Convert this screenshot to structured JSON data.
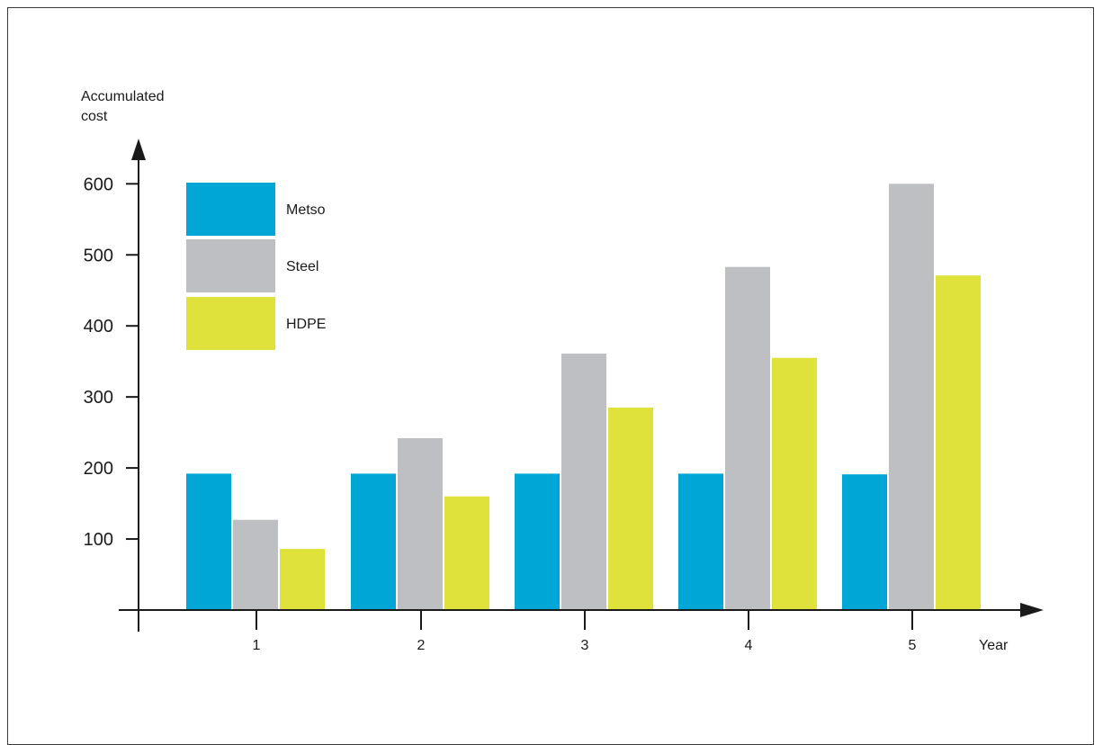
{
  "chart_data": {
    "type": "bar",
    "title": "",
    "ylabel_lines": [
      "Accumulated",
      "cost"
    ],
    "xlabel": "Year",
    "categories": [
      "1",
      "2",
      "3",
      "4",
      "5"
    ],
    "yticks": [
      "100",
      "200",
      "300",
      "400",
      "500",
      "600"
    ],
    "ylim": [
      0,
      600
    ],
    "grid": false,
    "legend_position": "top-left",
    "series": [
      {
        "name": "Metso",
        "color": "#00a6d6",
        "values": [
          192,
          192,
          192,
          192,
          191
        ]
      },
      {
        "name": "Steel",
        "color": "#bebfc3",
        "values": [
          127,
          242,
          361,
          483,
          600
        ]
      },
      {
        "name": "HDPE",
        "color": "#e0e23c",
        "values": [
          86,
          160,
          285,
          355,
          471
        ]
      }
    ]
  }
}
